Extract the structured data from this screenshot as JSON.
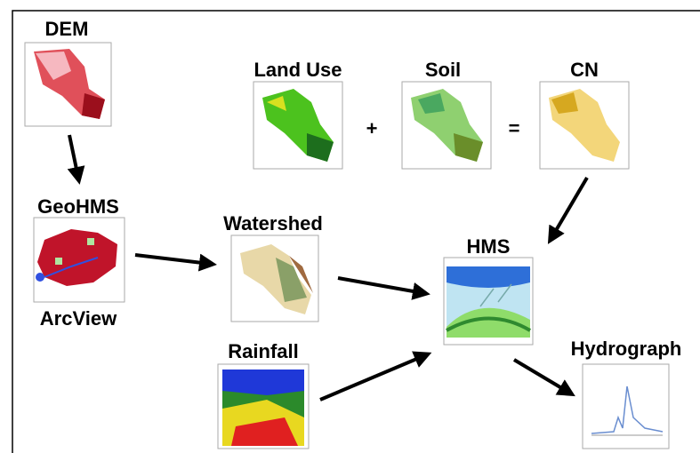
{
  "nodes": [
    {
      "label": "DEM"
    },
    {
      "label": "GeoHMS"
    },
    {
      "label": "ArcView"
    },
    {
      "label": "Land Use"
    },
    {
      "label": "Soil"
    },
    {
      "label": "CN"
    },
    {
      "label": "Watershed"
    },
    {
      "label": "HMS"
    },
    {
      "label": "Rainfall"
    },
    {
      "label": "Hydrograph"
    }
  ],
  "operators": [
    "+",
    "="
  ]
}
